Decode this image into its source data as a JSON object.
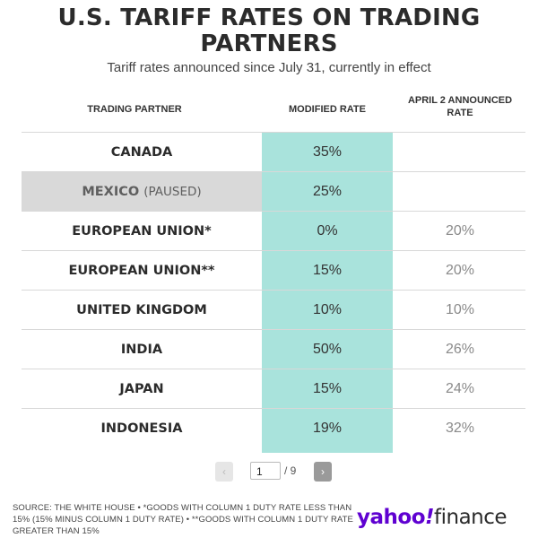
{
  "title_line1": "U.S. TARIFF RATES ON TRADING",
  "title_line2": "PARTNERS",
  "subtitle": "Tariff rates announced since July 31, currently in effect",
  "headers": {
    "partner": "TRADING PARTNER",
    "modified": "MODIFIED RATE",
    "april_line1": "APRIL 2 ANNOUNCED",
    "april_line2": "RATE"
  },
  "chart_data": {
    "type": "table",
    "columns": [
      "TRADING PARTNER",
      "MODIFIED RATE",
      "APRIL 2 ANNOUNCED RATE"
    ],
    "rows": [
      {
        "partner": "CANADA",
        "note": "",
        "modified": "35%",
        "april": ""
      },
      {
        "partner": "MEXICO",
        "note": "(PAUSED)",
        "modified": "25%",
        "april": ""
      },
      {
        "partner": "EUROPEAN UNION*",
        "note": "",
        "modified": "0%",
        "april": "20%"
      },
      {
        "partner": "EUROPEAN UNION**",
        "note": "",
        "modified": "15%",
        "april": "20%"
      },
      {
        "partner": "UNITED KINGDOM",
        "note": "",
        "modified": "10%",
        "april": "10%"
      },
      {
        "partner": "INDIA",
        "note": "",
        "modified": "50%",
        "april": "26%"
      },
      {
        "partner": "JAPAN",
        "note": "",
        "modified": "15%",
        "april": "24%"
      },
      {
        "partner": "INDONESIA",
        "note": "",
        "modified": "19%",
        "april": "32%"
      }
    ]
  },
  "pagination": {
    "prev_label": "‹",
    "current_page": "1",
    "total_label": "/ 9",
    "next_label": "›"
  },
  "source_text": "SOURCE: THE WHITE HOUSE • *GOODS WITH COLUMN 1 DUTY RATE LESS THAN 15% (15% MINUS COLUMN 1 DUTY RATE) • **GOODS WITH COLUMN 1 DUTY RATE GREATER THAN 15%",
  "logo": {
    "yahoo": "yahoo",
    "bang": "!",
    "finance": "finance"
  },
  "colors": {
    "highlight_column": "#a9e3dc",
    "paused_row": "#d9d9d9",
    "logo_purple": "#5f01d1"
  }
}
